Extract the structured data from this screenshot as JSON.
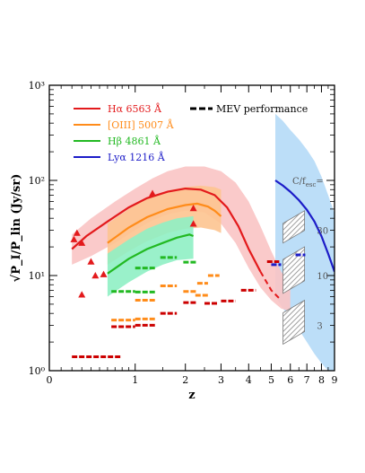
{
  "chart_data": {
    "type": "line",
    "xlabel": "z",
    "ylabel": "√P_I/P_lin (Jy/sr)",
    "xscale": "log(1+z)",
    "yscale": "log",
    "xlim": [
      0,
      9
    ],
    "ylim": [
      1,
      1000
    ],
    "x_ticks": [
      "0",
      "1",
      "2",
      "3",
      "4",
      "5",
      "6",
      "7",
      "8",
      "9"
    ],
    "y_ticks": [
      "10⁰",
      "10¹",
      "10²",
      "10³"
    ],
    "legend_placement": "top-left",
    "annotation_mev": "MEV performance",
    "annotation_cf": "C/f",
    "annotation_cf_sub": "esc",
    "annotation_cf_eq": "=",
    "cf_labels": [
      {
        "text": "30",
        "x": 6.4,
        "y": 30
      },
      {
        "text": "10",
        "x": 6.4,
        "y": 10
      },
      {
        "text": "3",
        "x": 6.4,
        "y": 3
      }
    ],
    "series": [
      {
        "name": "Hα 6563 Å",
        "color": "#e31a1c",
        "band_color": "#f9c4c4",
        "x": [
          0.2,
          0.35,
          0.6,
          0.9,
          1.2,
          1.6,
          2.0,
          2.4,
          2.8,
          3.2,
          3.6,
          4.0,
          4.5,
          5.0,
          5.5
        ],
        "y": [
          19,
          26,
          37,
          52,
          65,
          76,
          82,
          80,
          70,
          52,
          33,
          19,
          11,
          7,
          5.5
        ],
        "dashed_from": 4.8,
        "band_x": [
          0.2,
          0.4,
          0.7,
          1.0,
          1.3,
          1.6,
          2.0,
          2.5,
          3.0,
          3.5,
          4.0,
          4.5,
          5.0,
          5.5,
          6.0
        ],
        "band_lo": [
          13,
          16,
          22,
          30,
          38,
          44,
          48,
          46,
          35,
          22,
          12,
          7.5,
          5.5,
          4.5,
          4.2
        ],
        "band_hi": [
          27,
          40,
          60,
          82,
          105,
          125,
          140,
          140,
          125,
          95,
          60,
          33,
          18,
          11,
          8
        ]
      },
      {
        "name": "[OIII] 5007 Å",
        "color": "#ff8c1a",
        "band_color": "#fdc490",
        "x": [
          0.6,
          0.9,
          1.2,
          1.6,
          2.0,
          2.3,
          2.6,
          2.8,
          3.0
        ],
        "y": [
          22,
          32,
          41,
          50,
          55,
          57,
          53,
          48,
          42
        ],
        "band_x": [
          0.6,
          0.9,
          1.2,
          1.6,
          2.0,
          2.4,
          2.8,
          3.0
        ],
        "band_lo": [
          13,
          18,
          23,
          28,
          31,
          32,
          30,
          28
        ],
        "band_hi": [
          35,
          50,
          65,
          78,
          85,
          88,
          85,
          80
        ]
      },
      {
        "name": "Hβ 4861 Å",
        "color": "#22b922",
        "band_color": "#8ff0c4",
        "x": [
          0.6,
          0.9,
          1.2,
          1.5,
          1.8,
          2.1,
          2.2
        ],
        "y": [
          10.5,
          15,
          19,
          22,
          25,
          27,
          26
        ],
        "band_x": [
          0.6,
          0.9,
          1.2,
          1.5,
          1.8,
          2.2
        ],
        "band_lo": [
          6,
          8.5,
          11,
          13,
          14.5,
          15
        ],
        "band_hi": [
          17,
          24,
          31,
          36,
          40,
          42
        ]
      },
      {
        "name": "Lyα 1216 Å",
        "color": "#1c1cc8",
        "band_color": "#b8dcf8",
        "x": [
          5.2,
          5.6,
          6.0,
          6.5,
          7.0,
          7.5,
          8.0,
          8.5,
          9.0
        ],
        "y": [
          100,
          88,
          76,
          62,
          49,
          37,
          26,
          17,
          11
        ],
        "band_x": [
          5.2,
          5.6,
          6.0,
          6.5,
          7.0,
          7.5,
          8.0,
          8.5,
          9.0
        ],
        "band_lo": [
          6,
          4.5,
          3.5,
          2.7,
          2.0,
          1.5,
          1.2,
          1.0,
          1.0
        ],
        "band_hi": [
          500,
          420,
          340,
          270,
          210,
          160,
          110,
          70,
          45
        ]
      }
    ],
    "triangles": {
      "color": "#e31a1c",
      "points": [
        [
          0.22,
          24
        ],
        [
          0.25,
          28
        ],
        [
          0.3,
          22
        ],
        [
          0.3,
          6.3
        ],
        [
          0.4,
          14
        ],
        [
          0.45,
          10
        ],
        [
          0.55,
          10.3
        ],
        [
          1.3,
          73
        ],
        [
          2.2,
          35
        ],
        [
          2.2,
          51
        ]
      ]
    },
    "mev_segments": [
      {
        "color": "#cc0000",
        "x": [
          0.2,
          0.8
        ],
        "y": 1.4
      },
      {
        "color": "#cc0000",
        "x": [
          0.65,
          1.0
        ],
        "y": 2.9
      },
      {
        "color": "#cc0000",
        "x": [
          1.0,
          1.35
        ],
        "y": 3.0
      },
      {
        "color": "#cc0000",
        "x": [
          1.45,
          1.8
        ],
        "y": 4.0
      },
      {
        "color": "#cc0000",
        "x": [
          1.95,
          2.3
        ],
        "y": 5.2
      },
      {
        "color": "#cc0000",
        "x": [
          2.5,
          2.9
        ],
        "y": 5.1
      },
      {
        "color": "#cc0000",
        "x": [
          3.0,
          3.5
        ],
        "y": 5.4
      },
      {
        "color": "#cc0000",
        "x": [
          3.7,
          4.3
        ],
        "y": 7.0
      },
      {
        "color": "#cc0000",
        "x": [
          4.8,
          5.4
        ],
        "y": 14.0
      },
      {
        "color": "#ff8c1a",
        "x": [
          0.65,
          1.0
        ],
        "y": 3.4
      },
      {
        "color": "#ff8c1a",
        "x": [
          1.0,
          1.35
        ],
        "y": 3.5
      },
      {
        "color": "#ff8c1a",
        "x": [
          1.0,
          1.35
        ],
        "y": 5.5
      },
      {
        "color": "#ff8c1a",
        "x": [
          1.45,
          1.8
        ],
        "y": 7.8
      },
      {
        "color": "#ff8c1a",
        "x": [
          1.95,
          2.3
        ],
        "y": 6.8
      },
      {
        "color": "#ff8c1a",
        "x": [
          2.3,
          2.6
        ],
        "y": 8.3
      },
      {
        "color": "#ff8c1a",
        "x": [
          2.6,
          2.95
        ],
        "y": 10.0
      },
      {
        "color": "#ff8c1a",
        "x": [
          2.25,
          2.6
        ],
        "y": 6.2
      },
      {
        "color": "#22b922",
        "x": [
          0.65,
          1.0
        ],
        "y": 6.8
      },
      {
        "color": "#22b922",
        "x": [
          1.0,
          1.35
        ],
        "y": 6.7
      },
      {
        "color": "#22b922",
        "x": [
          1.0,
          1.35
        ],
        "y": 12.0
      },
      {
        "color": "#22b922",
        "x": [
          1.45,
          1.8
        ],
        "y": 15.5
      },
      {
        "color": "#22b922",
        "x": [
          1.95,
          2.3
        ],
        "y": 13.8
      },
      {
        "color": "#1c1cc8",
        "x": [
          5.0,
          5.5
        ],
        "y": 13.0
      },
      {
        "color": "#1c1cc8",
        "x": [
          6.3,
          6.9
        ],
        "y": 16.5
      }
    ],
    "hatched_regions": [
      {
        "x": 5.6,
        "y_top": 48,
        "y_bot": 22
      },
      {
        "x": 5.6,
        "y_top": 20,
        "y_bot": 6.5
      },
      {
        "x": 5.6,
        "y_top": 5.5,
        "y_bot": 1.9
      }
    ]
  }
}
